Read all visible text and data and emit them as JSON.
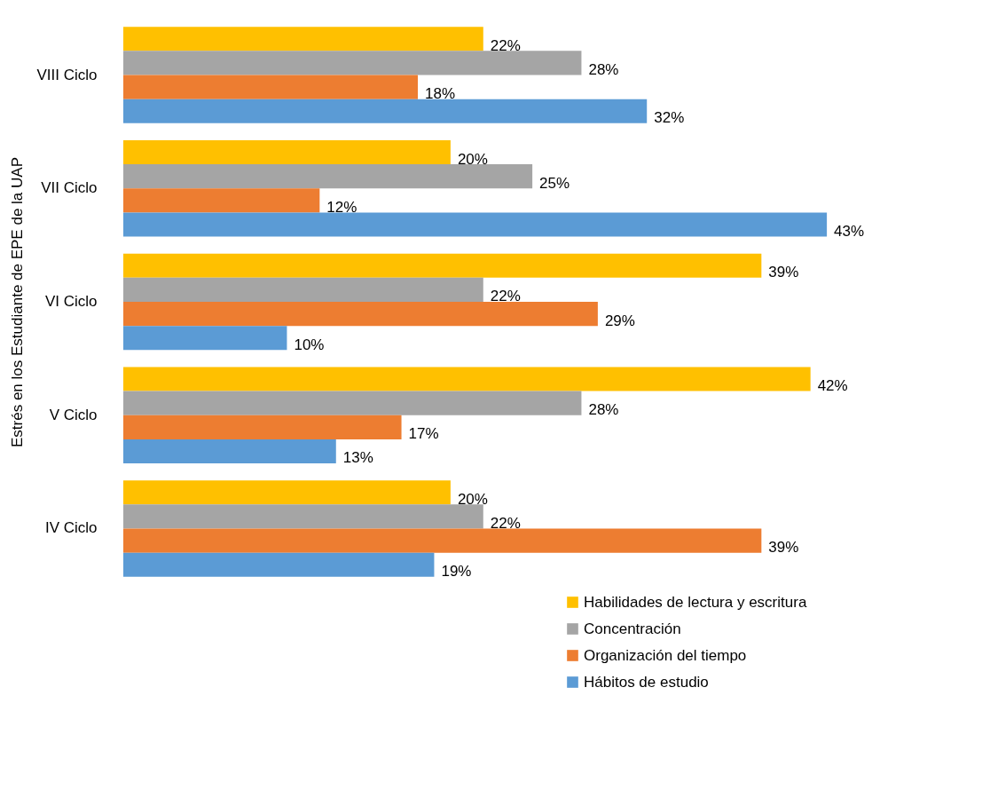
{
  "chart_data": {
    "type": "bar",
    "orientation": "horizontal",
    "ylabel": "Estrés en los Estudiante de EPE de la UAP",
    "categories": [
      "VIII Ciclo",
      "VII Ciclo",
      "VI Ciclo",
      "V Ciclo",
      "IV Ciclo"
    ],
    "series": [
      {
        "name": "Habilidades de lectura y escritura",
        "color": "#ffc000",
        "values": [
          22,
          20,
          39,
          42,
          20
        ],
        "value_labels": [
          "22%",
          "20%",
          "39%",
          "42%",
          "20%"
        ]
      },
      {
        "name": "Concentración",
        "color": "#a5a5a5",
        "values": [
          28,
          25,
          22,
          28,
          22
        ],
        "value_labels": [
          "28%",
          "25%",
          "22%",
          "28%",
          "22%"
        ]
      },
      {
        "name": "Organización del tiempo",
        "color": "#ed7d31",
        "values": [
          18,
          12,
          29,
          17,
          39
        ],
        "value_labels": [
          "18%",
          "12%",
          "29%",
          "17%",
          "39%"
        ]
      },
      {
        "name": "Hábitos de estudio",
        "color": "#5b9bd5",
        "values": [
          32,
          43,
          10,
          13,
          19
        ],
        "value_labels": [
          "32%",
          "43%",
          "10%",
          "13%",
          "19%"
        ]
      }
    ],
    "legend": "bottom right",
    "grid": false
  }
}
